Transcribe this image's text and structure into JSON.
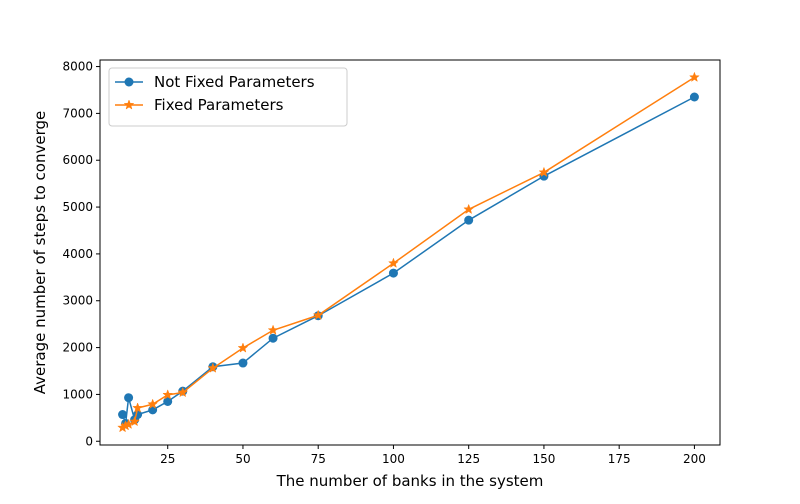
{
  "chart_data": {
    "type": "line",
    "xlabel": "The number of banks in the system",
    "ylabel": "Average number of steps to converge",
    "xlim": [
      2.5,
      208.5
    ],
    "ylim": [
      -80,
      8140
    ],
    "xticks": [
      25,
      50,
      75,
      100,
      125,
      150,
      175,
      200
    ],
    "yticks": [
      0,
      1000,
      2000,
      3000,
      4000,
      5000,
      6000,
      7000,
      8000
    ],
    "grid": false,
    "legend_position": "upper-left",
    "series": [
      {
        "name": "Not Fixed Parameters",
        "color": "#1f77b4",
        "marker": "circle",
        "x": [
          10,
          11,
          12,
          14,
          15,
          20,
          25,
          30,
          40,
          50,
          60,
          75,
          100,
          125,
          150,
          200
        ],
        "y": [
          570,
          380,
          930,
          460,
          570,
          670,
          850,
          1070,
          1590,
          1670,
          2200,
          2680,
          3590,
          4720,
          5660,
          7350
        ]
      },
      {
        "name": "Fixed Parameters",
        "color": "#ff7f0e",
        "marker": "star",
        "x": [
          10,
          11,
          12,
          14,
          15,
          20,
          25,
          30,
          40,
          50,
          60,
          75,
          100,
          125,
          150,
          200
        ],
        "y": [
          290,
          330,
          360,
          420,
          710,
          790,
          990,
          1040,
          1560,
          1990,
          2370,
          2690,
          3800,
          4950,
          5740,
          7770
        ]
      }
    ]
  }
}
